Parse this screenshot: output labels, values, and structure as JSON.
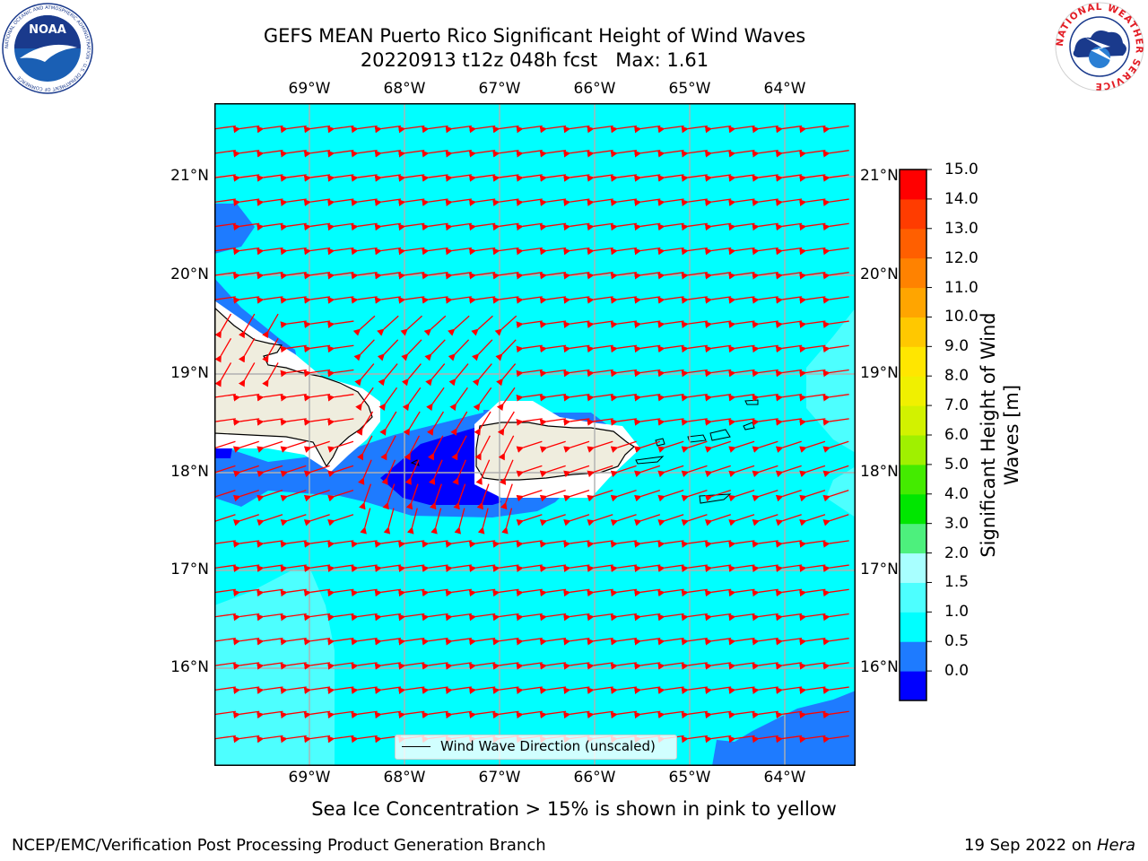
{
  "header": {
    "title_line1": "GEFS MEAN Puerto Rico Significant Height of Wind Waves",
    "title_line2": "20220913 t12z 048h fcst   Max: 1.61"
  },
  "logos": {
    "left": "NOAA",
    "left_ring_text": "NATIONAL OCEANIC AND ATMOSPHERIC ADMINISTRATION · U.S. DEPARTMENT OF COMMERCE",
    "right_ring_text": "NATIONAL WEATHER SERVICE"
  },
  "map": {
    "x_ticks": [
      "69°W",
      "68°W",
      "67°W",
      "66°W",
      "65°W",
      "64°W"
    ],
    "y_ticks": [
      "21°N",
      "20°N",
      "19°N",
      "18°N",
      "17°N",
      "16°N"
    ],
    "legend": "Wind Wave Direction (unscaled)",
    "arrow_color": "#ff0000",
    "land_color": "#efedde"
  },
  "colorbar": {
    "label": "Significant Height of Wind Waves [m]",
    "ticks": [
      "15.0",
      "14.0",
      "13.0",
      "12.0",
      "11.0",
      "10.0",
      "9.0",
      "8.0",
      "7.0",
      "6.0",
      "5.0",
      "4.0",
      "3.0",
      "2.0",
      "1.5",
      "1.0",
      "0.5",
      "0.0"
    ],
    "colors_bottom_to_top": [
      "#0000ff",
      "#1e7bff",
      "#00ffff",
      "#4dffff",
      "#a8ffff",
      "#4df07d",
      "#00e600",
      "#44eb00",
      "#a0f000",
      "#d2f200",
      "#f0f000",
      "#ffe600",
      "#ffc800",
      "#ffa500",
      "#ff8200",
      "#ff5f00",
      "#ff3c00",
      "#ff0000"
    ]
  },
  "caption": "Sea Ice Concentration > 15% is shown in pink to yellow",
  "footer": {
    "left": "NCEP/EMC/Verification Post Processing Product Generation Branch",
    "date": "19 Sep 2022 on ",
    "host": "Hera"
  }
}
